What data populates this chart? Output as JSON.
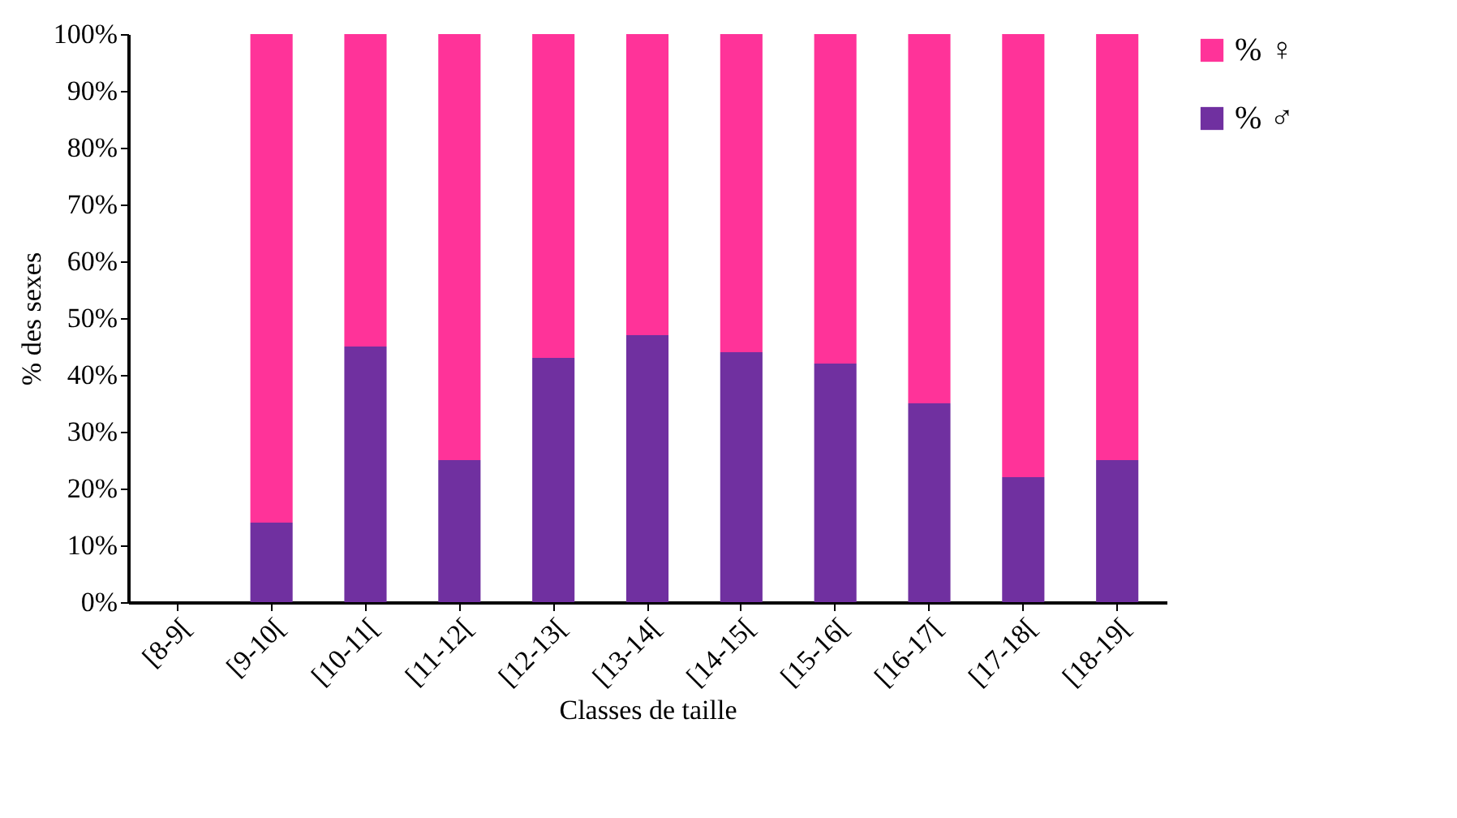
{
  "chart_data": {
    "type": "bar",
    "stacked": true,
    "xlabel": "Classes de taille",
    "ylabel": "% des sexes",
    "categories": [
      "[8-9[",
      "[9-10[",
      "[10-11[",
      "[11-12[",
      "[12-13[",
      "[13-14[",
      "[14-15[",
      "[15-16[",
      "[16-17[",
      "[17-18[",
      "[18-19["
    ],
    "series": [
      {
        "name": "% ♂",
        "color": "#7030a0",
        "values": [
          0,
          14,
          45,
          25,
          43,
          47,
          44,
          42,
          35,
          22,
          25
        ]
      },
      {
        "name": "% ♀",
        "color": "#ff3399",
        "values": [
          0,
          86,
          55,
          75,
          57,
          53,
          56,
          58,
          65,
          78,
          75
        ]
      }
    ],
    "ylim": [
      0,
      100
    ],
    "yticks": [
      {
        "value": 0,
        "label": "0%"
      },
      {
        "value": 10,
        "label": "10%"
      },
      {
        "value": 20,
        "label": "20%"
      },
      {
        "value": 30,
        "label": "30%"
      },
      {
        "value": 40,
        "label": "40%"
      },
      {
        "value": 50,
        "label": "50%"
      },
      {
        "value": 60,
        "label": "60%"
      },
      {
        "value": 70,
        "label": "70%"
      },
      {
        "value": 80,
        "label": "80%"
      },
      {
        "value": 90,
        "label": "90%"
      },
      {
        "value": 100,
        "label": "100%"
      }
    ],
    "grid": false,
    "legend": "right"
  }
}
